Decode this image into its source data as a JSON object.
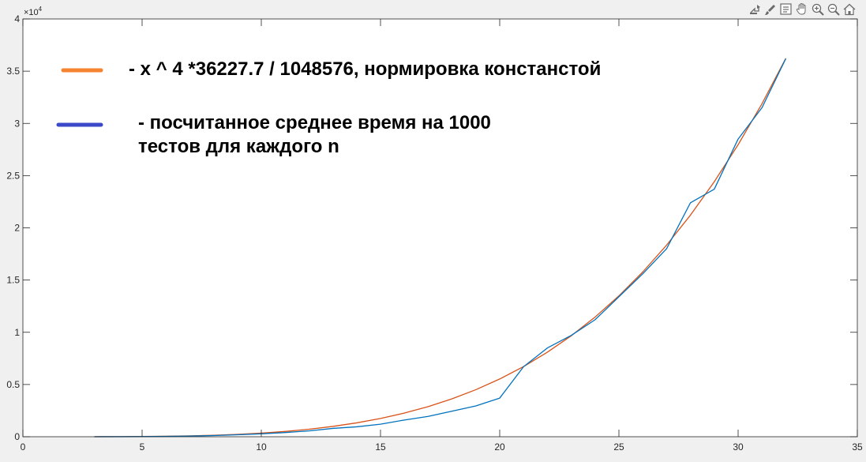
{
  "toolbar": {
    "icons": [
      "export-icon",
      "brush-icon",
      "datatip-icon",
      "pan-icon",
      "zoom-in-icon",
      "zoom-out-icon",
      "home-icon"
    ]
  },
  "chart_data": {
    "type": "line",
    "title": "",
    "xlabel": "",
    "ylabel": "",
    "xlim": [
      0,
      35
    ],
    "ylim": [
      0,
      40000
    ],
    "x_ticks": [
      0,
      5,
      10,
      15,
      20,
      25,
      30,
      35
    ],
    "y_ticks": [
      0,
      5000,
      10000,
      15000,
      20000,
      25000,
      30000,
      35000,
      40000
    ],
    "y_tick_labels": [
      "0",
      "0.5",
      "1",
      "1.5",
      "2",
      "2.5",
      "3",
      "3.5",
      "4"
    ],
    "y_exponent_label": "×10",
    "y_exponent_power": "4",
    "grid": false,
    "legend_placement": "top-left",
    "series": [
      {
        "legend_label": "- x ^ 4 *36227.7 / 1048576, нормировка констанстой",
        "color": "#d95319",
        "legend_color": "#f58330",
        "x": [
          3,
          4,
          5,
          6,
          7,
          8,
          9,
          10,
          11,
          12,
          13,
          14,
          15,
          16,
          17,
          18,
          19,
          20,
          21,
          22,
          23,
          24,
          25,
          26,
          27,
          28,
          29,
          30,
          31,
          32
        ],
        "y": [
          2.8,
          8.8,
          21.6,
          44.8,
          83,
          141.5,
          226.7,
          345.5,
          505.8,
          716.4,
          986.8,
          1327,
          1749,
          2264,
          2886,
          3627,
          4503,
          5528,
          6719,
          8093,
          9665,
          11456,
          13486,
          15775,
          18344,
          21215,
          24412,
          27958,
          31877,
          36228
        ]
      },
      {
        "legend_label_line1": "- посчитанное среднее время на 1000",
        "legend_label_line2": "тестов для каждого n",
        "color": "#0072bd",
        "legend_color": "#3b48c8",
        "x": [
          3,
          4,
          5,
          6,
          7,
          8,
          9,
          10,
          11,
          12,
          13,
          14,
          15,
          16,
          17,
          18,
          19,
          20,
          21,
          22,
          23,
          24,
          25,
          26,
          27,
          28,
          29,
          30,
          31,
          32
        ],
        "y": [
          2,
          6,
          15,
          32,
          62,
          115,
          190,
          280,
          400,
          560,
          800,
          950,
          1200,
          1600,
          1950,
          2450,
          2950,
          3700,
          6700,
          8500,
          9700,
          11200,
          13400,
          15600,
          18000,
          22400,
          23700,
          28500,
          31500,
          36200
        ]
      }
    ]
  }
}
